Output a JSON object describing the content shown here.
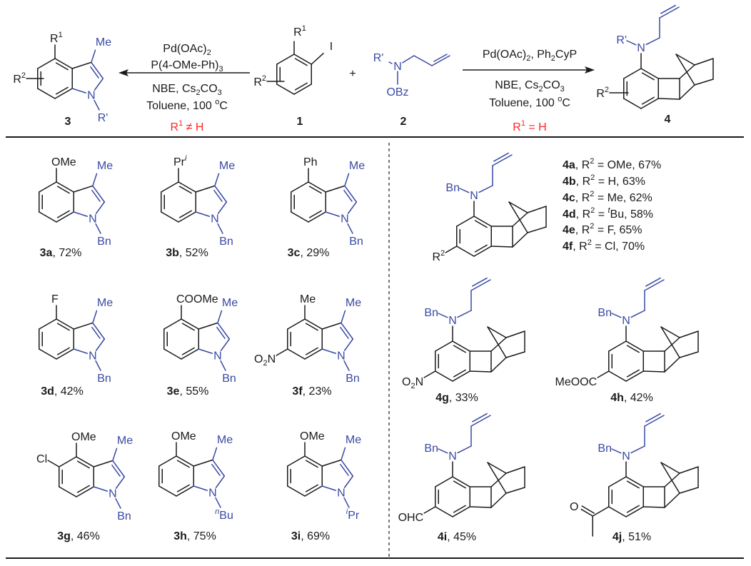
{
  "colors": {
    "bond": "#1a1a1a",
    "heteroatom_blue": "#3949a3",
    "condition_red": "#ff2626"
  },
  "scheme": {
    "left_conditions": [
      [
        [
          "Pd(OAc)",
          ""
        ],
        [
          "2",
          "sub"
        ]
      ],
      [
        [
          "P(4-OMe-Ph)",
          ""
        ],
        [
          "3",
          "sub"
        ]
      ],
      [
        [
          "NBE, Cs",
          ""
        ],
        [
          "2",
          "sub"
        ],
        [
          "CO",
          ""
        ],
        [
          "3",
          "sub"
        ]
      ],
      [
        [
          "Toluene, 100 ",
          ""
        ],
        [
          "o",
          "sup"
        ],
        [
          "C",
          ""
        ]
      ]
    ],
    "left_constraint": [
      [
        "R",
        ""
      ],
      [
        "1",
        "sup"
      ],
      [
        " ≠ H",
        ""
      ]
    ],
    "right_conditions": [
      [
        [
          "Pd(OAc)",
          ""
        ],
        [
          "2",
          "sub"
        ],
        [
          ", Ph",
          ""
        ],
        [
          "2",
          "sub"
        ],
        [
          "CyP",
          ""
        ]
      ],
      [
        [
          "NBE, Cs",
          ""
        ],
        [
          "2",
          "sub"
        ],
        [
          "CO",
          ""
        ],
        [
          "3",
          "sub"
        ]
      ],
      [
        [
          "Toluene, 100 ",
          ""
        ],
        [
          "o",
          "sup"
        ],
        [
          "C",
          ""
        ]
      ]
    ],
    "right_constraint": [
      [
        "R",
        ""
      ],
      [
        "1",
        "sup"
      ],
      [
        " = H",
        ""
      ]
    ],
    "plus": "+",
    "compound_3": {
      "label": "3",
      "c4": [
        [
          "R",
          ""
        ],
        [
          "1",
          "sup"
        ]
      ],
      "r2": [
        [
          "R",
          ""
        ],
        [
          "2",
          "sup"
        ]
      ],
      "me": "Me",
      "n": "N",
      "nsub": "R'"
    },
    "compound_1": {
      "label": "1",
      "r1": [
        [
          "R",
          ""
        ],
        [
          "1",
          "sup"
        ]
      ],
      "iodo": "I",
      "r2": [
        [
          "R",
          ""
        ],
        [
          "2",
          "sup"
        ]
      ]
    },
    "compound_2": {
      "label": "2",
      "rprime": "R'",
      "n": "N",
      "obz": "OBz"
    },
    "compound_4": {
      "label": "4",
      "nsub": "R'",
      "n": "N",
      "r2": [
        [
          "R",
          ""
        ],
        [
          "2",
          "sup"
        ]
      ]
    }
  },
  "products3": [
    {
      "label": "3a",
      "yield": ", 72%",
      "c4": "OMe",
      "me": "Me",
      "n": "N",
      "nsub": "Bn"
    },
    {
      "label": "3b",
      "yield": ", 52%",
      "c4": [
        [
          "Pr",
          ""
        ],
        [
          "i",
          "supi"
        ]
      ],
      "me": "Me",
      "n": "N",
      "nsub": "Bn"
    },
    {
      "label": "3c",
      "yield": ", 29%",
      "c4": "Ph",
      "me": "Me",
      "n": "N",
      "nsub": "Bn"
    },
    {
      "label": "3d",
      "yield": ", 42%",
      "c4": "F",
      "me": "Me",
      "n": "N",
      "nsub": "Bn"
    },
    {
      "label": "3e",
      "yield": ", 55%",
      "c4": "COOMe",
      "me": "Me",
      "n": "N",
      "nsub": "Bn"
    },
    {
      "label": "3f",
      "yield": ", 23%",
      "c4": "Me",
      "c6": [
        [
          "O",
          ""
        ],
        [
          "2",
          "sub"
        ],
        [
          "N",
          ""
        ]
      ],
      "me": "Me",
      "n": "N",
      "nsub": "Bn"
    },
    {
      "label": "3g",
      "yield": ", 46%",
      "c4": "OMe",
      "c5": "Cl",
      "me": "Me",
      "n": "N",
      "nsub": "Bn"
    },
    {
      "label": "3h",
      "yield": ", 75%",
      "c4": "OMe",
      "me": "Me",
      "n": "N",
      "nsub": [
        [
          "n",
          "supi"
        ],
        [
          "Bu",
          ""
        ]
      ]
    },
    {
      "label": "3i",
      "yield": ", 69%",
      "c4": "OMe",
      "me": "Me",
      "n": "N",
      "nsub": [
        [
          "i",
          "supi"
        ],
        [
          "Pr",
          ""
        ]
      ]
    }
  ],
  "product4_general": {
    "n": "N",
    "nsub": "Bn",
    "r2": [
      [
        "R",
        ""
      ],
      [
        "2",
        "sup"
      ]
    ]
  },
  "series4_list": [
    {
      "label": "4a",
      "text": [
        [
          ", R",
          ""
        ],
        [
          "2",
          "sup"
        ],
        [
          " = OMe, 67%",
          ""
        ]
      ]
    },
    {
      "label": "4b",
      "text": [
        [
          ", R",
          ""
        ],
        [
          "2",
          "sup"
        ],
        [
          " = H, 63%",
          ""
        ]
      ]
    },
    {
      "label": "4c",
      "text": [
        [
          ", R",
          ""
        ],
        [
          "2",
          "sup"
        ],
        [
          " = Me, 62%",
          ""
        ]
      ]
    },
    {
      "label": "4d",
      "text": [
        [
          ", R",
          ""
        ],
        [
          "2",
          "sup"
        ],
        [
          " = ",
          ""
        ],
        [
          "t",
          "supi"
        ],
        [
          "Bu, 58%",
          ""
        ]
      ]
    },
    {
      "label": "4e",
      "text": [
        [
          ", R",
          ""
        ],
        [
          "2",
          "sup"
        ],
        [
          " = F, 65%",
          ""
        ]
      ]
    },
    {
      "label": "4f",
      "text": [
        [
          ", R",
          ""
        ],
        [
          "2",
          "sup"
        ],
        [
          " = Cl, 70%",
          ""
        ]
      ]
    }
  ],
  "products4": [
    {
      "label": "4g",
      "yield": ", 33%",
      "n": "N",
      "nsub": "Bn",
      "r": [
        [
          "O",
          ""
        ],
        [
          "2",
          "sub"
        ],
        [
          "N",
          ""
        ]
      ]
    },
    {
      "label": "4h",
      "yield": ", 42%",
      "n": "N",
      "nsub": "Bn",
      "r": "MeOOC"
    },
    {
      "label": "4i",
      "yield": ", 45%",
      "n": "N",
      "nsub": "Bn",
      "r": "OHC"
    },
    {
      "label": "4j",
      "yield": ", 51%",
      "n": "N",
      "nsub": "Bn",
      "r_oxygen": "O"
    }
  ]
}
